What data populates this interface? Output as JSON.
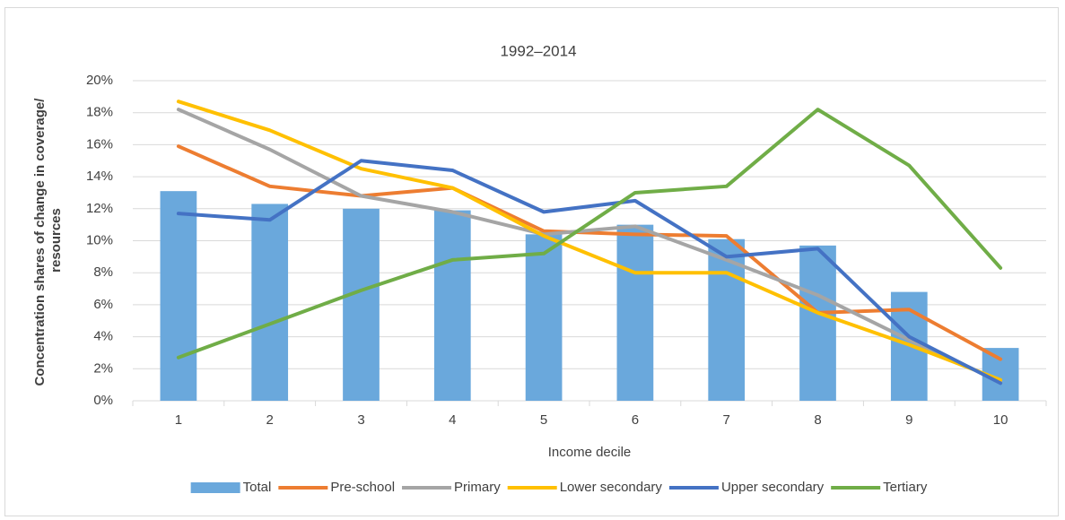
{
  "chart_data": {
    "type": "combo",
    "title": "1992–2014",
    "xlabel": "Income decile",
    "ylabel": [
      "Concentration shares of change in coverage/",
      "resources"
    ],
    "categories": [
      "1",
      "2",
      "3",
      "4",
      "5",
      "6",
      "7",
      "8",
      "9",
      "10"
    ],
    "ylim": [
      0,
      20
    ],
    "yticks": [
      {
        "value": 0,
        "label": "0%"
      },
      {
        "value": 2,
        "label": "2%"
      },
      {
        "value": 4,
        "label": "4%"
      },
      {
        "value": 6,
        "label": "6%"
      },
      {
        "value": 8,
        "label": "8%"
      },
      {
        "value": 10,
        "label": "10%"
      },
      {
        "value": 12,
        "label": "12%"
      },
      {
        "value": 14,
        "label": "14%"
      },
      {
        "value": 16,
        "label": "16%"
      },
      {
        "value": 18,
        "label": "18%"
      },
      {
        "value": 20,
        "label": "20%"
      }
    ],
    "grid": true,
    "legend": "bottom",
    "series": [
      {
        "name": "Total",
        "type": "bar",
        "color": "#6aa8dc",
        "values": [
          13.1,
          12.3,
          12.0,
          11.9,
          10.4,
          11.0,
          10.1,
          9.7,
          6.8,
          3.3
        ]
      },
      {
        "name": "Pre-school",
        "type": "line",
        "color": "#ed7d31",
        "values": [
          15.9,
          13.4,
          12.8,
          13.3,
          10.6,
          10.4,
          10.3,
          5.5,
          5.7,
          2.6
        ]
      },
      {
        "name": "Primary",
        "type": "line",
        "color": "#a5a5a5",
        "values": [
          18.2,
          15.7,
          12.8,
          11.8,
          10.4,
          10.9,
          8.8,
          6.6,
          3.8,
          1.2
        ]
      },
      {
        "name": "Lower secondary",
        "type": "line",
        "color": "#ffc000",
        "values": [
          18.7,
          16.9,
          14.5,
          13.3,
          10.3,
          8.0,
          8.0,
          5.5,
          3.5,
          1.3
        ]
      },
      {
        "name": "Upper secondary",
        "type": "line",
        "color": "#4472c4",
        "values": [
          11.7,
          11.3,
          15.0,
          14.4,
          11.8,
          12.5,
          9.0,
          9.5,
          4.0,
          1.1
        ]
      },
      {
        "name": "Tertiary",
        "type": "line",
        "color": "#70ad47",
        "values": [
          2.7,
          4.8,
          6.9,
          8.8,
          9.2,
          13.0,
          13.4,
          18.2,
          14.7,
          8.3
        ]
      }
    ]
  }
}
